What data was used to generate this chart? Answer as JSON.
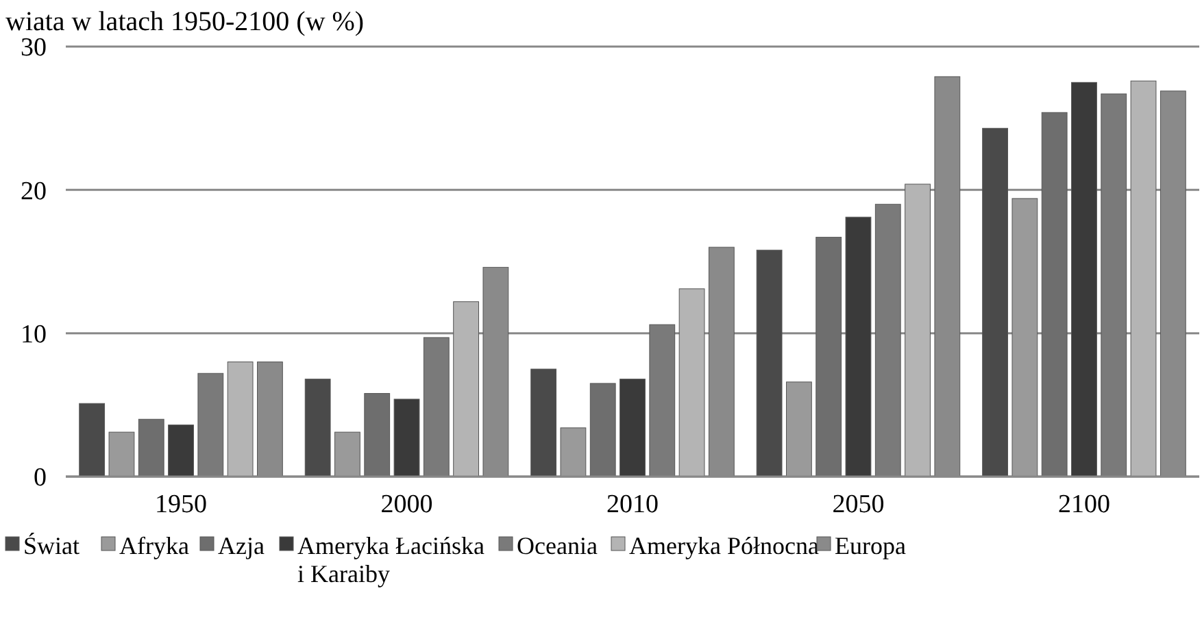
{
  "chart_data": {
    "type": "bar",
    "title": "wiata w latach 1950-2100 (w %)",
    "categories": [
      "1950",
      "2000",
      "2010",
      "2050",
      "2100"
    ],
    "series": [
      {
        "name": "Świat",
        "color": "#4a4a4a",
        "values": [
          5.1,
          6.8,
          7.5,
          15.8,
          24.3
        ]
      },
      {
        "name": "Afryka",
        "color": "#9a9a9a",
        "values": [
          3.1,
          3.1,
          3.4,
          6.6,
          19.4
        ]
      },
      {
        "name": "Azja",
        "color": "#6e6e6e",
        "values": [
          4.0,
          5.8,
          6.5,
          16.7,
          25.4
        ]
      },
      {
        "name": "Ameryka Łacińska i Karaiby",
        "color": "#3a3a3a",
        "values": [
          3.6,
          5.4,
          6.8,
          18.1,
          27.5
        ]
      },
      {
        "name": "Oceania",
        "color": "#7a7a7a",
        "values": [
          7.2,
          9.7,
          10.6,
          19.0,
          26.7
        ]
      },
      {
        "name": "Ameryka Północna",
        "color": "#b4b4b4",
        "values": [
          8.0,
          12.2,
          13.1,
          20.4,
          27.6
        ]
      },
      {
        "name": "Europa",
        "color": "#8a8a8a",
        "values": [
          8.0,
          14.6,
          16.0,
          27.9,
          26.9
        ]
      }
    ],
    "ylim": [
      0,
      30
    ],
    "yticks": [
      0,
      10,
      20,
      30
    ],
    "grid": "y",
    "legend": "bottom"
  }
}
